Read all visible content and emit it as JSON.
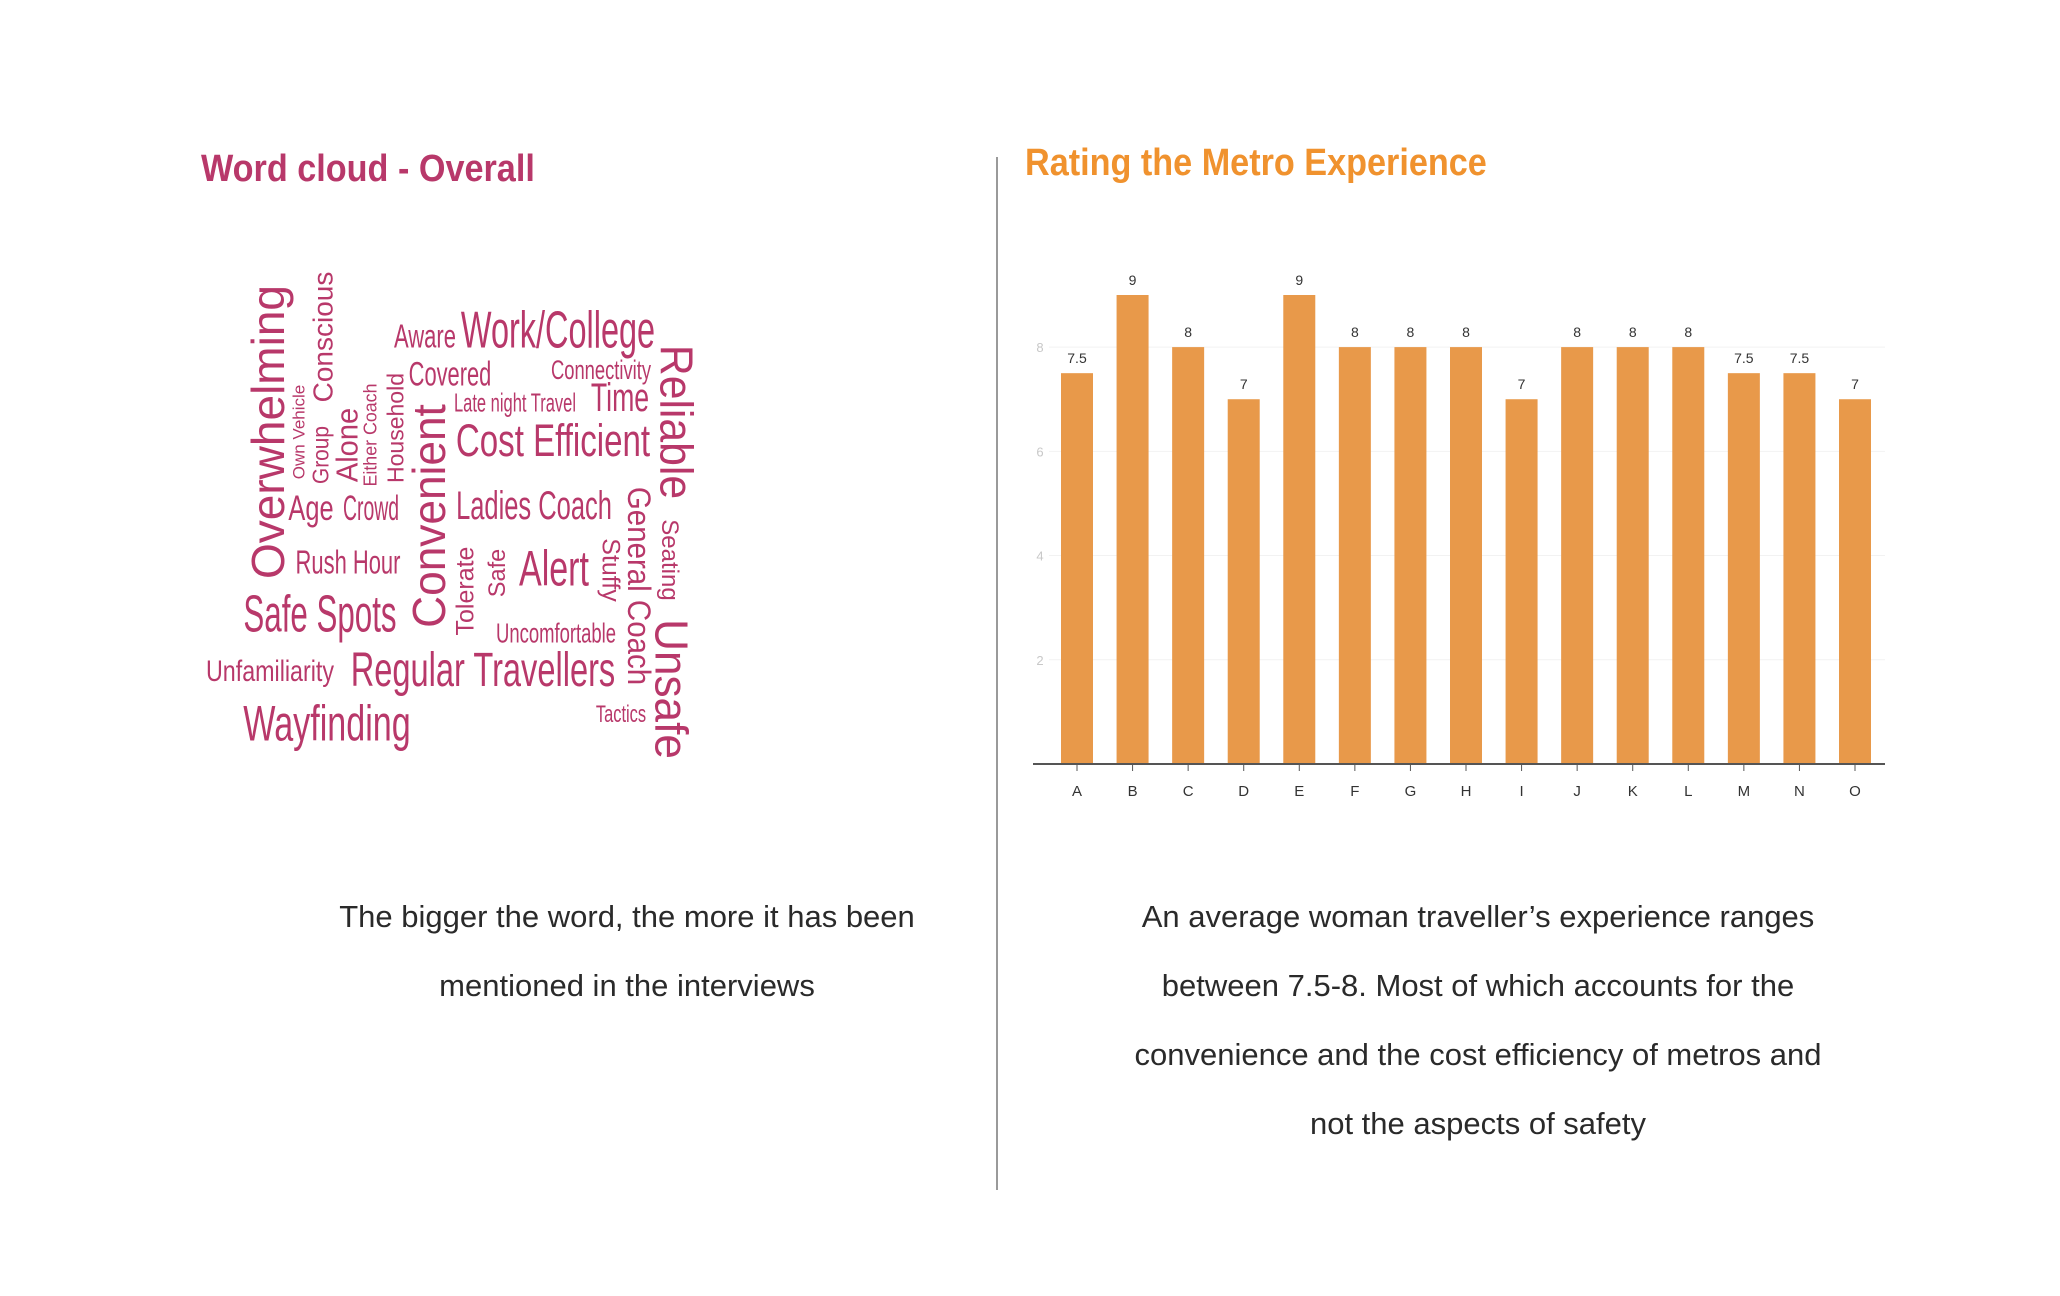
{
  "left": {
    "title": "Word cloud - Overall",
    "caption_lines": [
      "The bigger the word, the more it has been",
      "mentioned in the interviews"
    ],
    "words": {
      "overwhelming": "Overwhelming",
      "own_vehicle": "Own Vehicle",
      "group": "Group",
      "conscious": "Conscious",
      "alone": "Alone",
      "either_coach": "Either Coach",
      "household": "Household",
      "convenient": "Convenient",
      "aware": "Aware",
      "work_college": "Work/College",
      "covered": "Covered",
      "connectivity": "Connectivity",
      "late_night_travel": "Late night Travel",
      "time": "Time",
      "cost_efficient": "Cost Efficient",
      "reliable": "Reliable",
      "age": "Age",
      "crowd": "Crowd",
      "ladies_coach": "Ladies Coach",
      "rush_hour": "Rush Hour",
      "tolerate": "Tolerate",
      "safe": "Safe",
      "alert": "Alert",
      "stuffy": "Stuffy",
      "general_coach": "General Coach",
      "seating": "Seating",
      "unsafe": "Unsafe",
      "safe_spots": "Safe Spots",
      "uncomfortable": "Uncomfortable",
      "unfamiliarity": "Unfamiliarity",
      "regular_travellers": "Regular Travellers",
      "tactics": "Tactics",
      "wayfinding": "Wayfinding"
    },
    "color": "#b8386a"
  },
  "right": {
    "title": "Rating the Metro Experience",
    "caption_lines": [
      "An average woman traveller’s experience ranges",
      "between 7.5-8. Most of which accounts for the",
      "convenience and the cost efficiency of metros and",
      "not the aspects of safety"
    ],
    "title_color": "#f0922e"
  },
  "chart_data": {
    "type": "bar",
    "categories": [
      "A",
      "B",
      "C",
      "D",
      "E",
      "F",
      "G",
      "H",
      "I",
      "J",
      "K",
      "L",
      "M",
      "N",
      "O"
    ],
    "values": [
      7.5,
      9,
      8,
      7,
      9,
      8,
      8,
      8,
      7,
      8,
      8,
      8,
      7.5,
      7.5,
      7
    ],
    "data_labels": [
      "7.5",
      "9",
      "8",
      "7",
      "9",
      "8",
      "8",
      "8",
      "7",
      "8",
      "8",
      "8",
      "7.5",
      "7.5",
      "7"
    ],
    "yticks": [
      2,
      4,
      6,
      8
    ],
    "ylim": [
      0,
      9
    ],
    "grid": true,
    "bar_color": "#e8994a",
    "title": "",
    "xlabel": "",
    "ylabel": ""
  }
}
